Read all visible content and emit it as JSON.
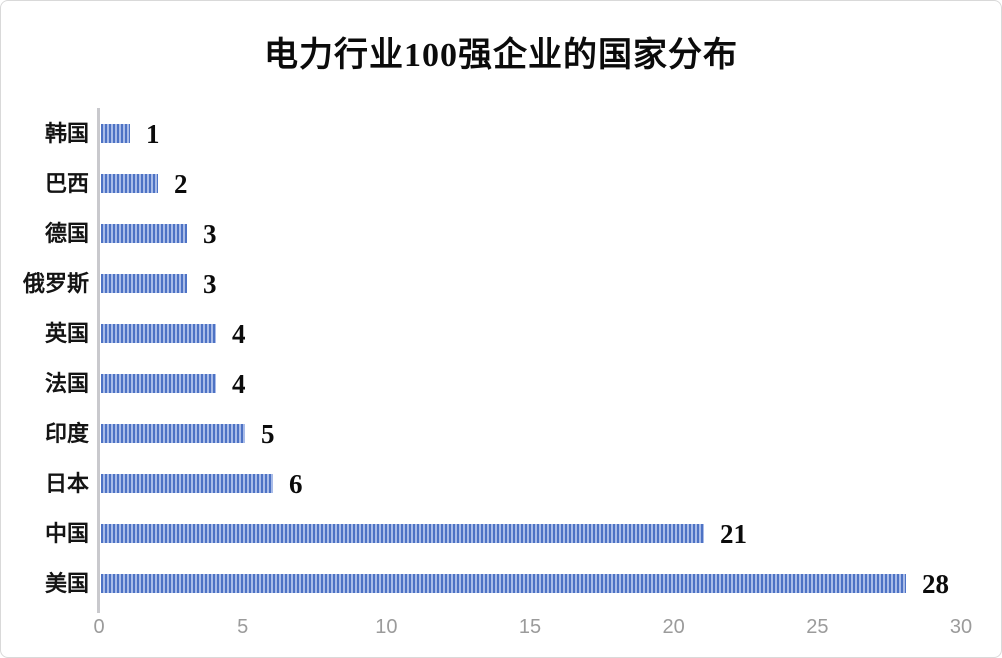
{
  "chart_data": {
    "type": "bar",
    "orientation": "horizontal",
    "title": "电力行业100强企业的国家分布",
    "categories": [
      "韩国",
      "巴西",
      "德国",
      "俄罗斯",
      "英国",
      "法国",
      "印度",
      "日本",
      "中国",
      "美国"
    ],
    "values": [
      1,
      2,
      3,
      3,
      4,
      4,
      5,
      6,
      21,
      28
    ],
    "data_labels_shown": true,
    "xlabel": "",
    "ylabel": "",
    "xlim": [
      0,
      30
    ],
    "x_ticks": [
      0,
      5,
      10,
      15,
      20,
      25,
      30
    ],
    "grid": false,
    "legend": "none",
    "bar_fill_pattern": "vertical-stripes"
  },
  "colors": {
    "bar_stripe_dark": "#4d72c4",
    "bar_stripe_light": "#a9bce8",
    "axis_line": "#c9c9cd",
    "tick_text": "#9b9b9b",
    "label_text": "#0b0b0b",
    "frame_border": "#d9d9d9",
    "background": "#ffffff"
  }
}
